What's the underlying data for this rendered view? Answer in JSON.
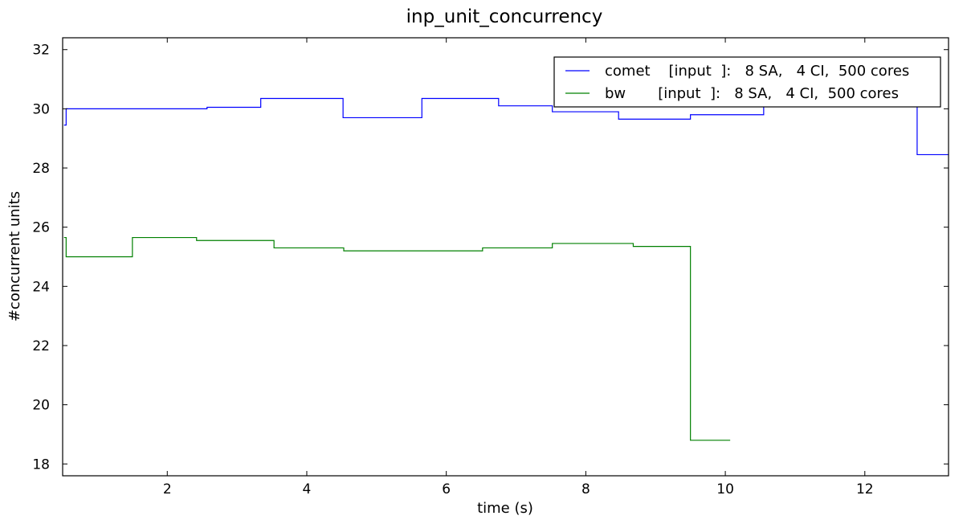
{
  "chart_data": {
    "type": "line",
    "title": "inp_unit_concurrency",
    "xlabel": "time (s)",
    "ylabel": "#concurrent units",
    "xlim": [
      0.5,
      13.2
    ],
    "ylim": [
      17.6,
      32.4
    ],
    "xticks": [
      2,
      4,
      6,
      8,
      10,
      12
    ],
    "yticks": [
      18,
      20,
      22,
      24,
      26,
      28,
      30,
      32
    ],
    "grid": false,
    "legend_position": "top-right",
    "series": [
      {
        "name": "comet    [input  ]:   8 SA,   4 CI,  500 cores",
        "color": "#0000ff",
        "step": true,
        "x": [
          0.52,
          0.55,
          2.57,
          3.34,
          4.52,
          5.65,
          6.75,
          7.52,
          8.47,
          9.5,
          10.55,
          12.75,
          13.2
        ],
        "y": [
          29.45,
          30.0,
          30.05,
          30.35,
          29.7,
          30.35,
          30.1,
          29.9,
          29.65,
          29.8,
          30.15,
          28.45,
          28.45
        ]
      },
      {
        "name": "bw       [input  ]:   8 SA,   4 CI,  500 cores",
        "color": "#008000",
        "step": true,
        "x": [
          0.52,
          0.55,
          1.5,
          2.42,
          3.53,
          4.53,
          6.52,
          7.52,
          8.68,
          9.5,
          10.07
        ],
        "y": [
          25.65,
          25.0,
          25.65,
          25.55,
          25.3,
          25.2,
          25.3,
          25.45,
          25.35,
          18.8,
          18.8
        ]
      }
    ]
  }
}
